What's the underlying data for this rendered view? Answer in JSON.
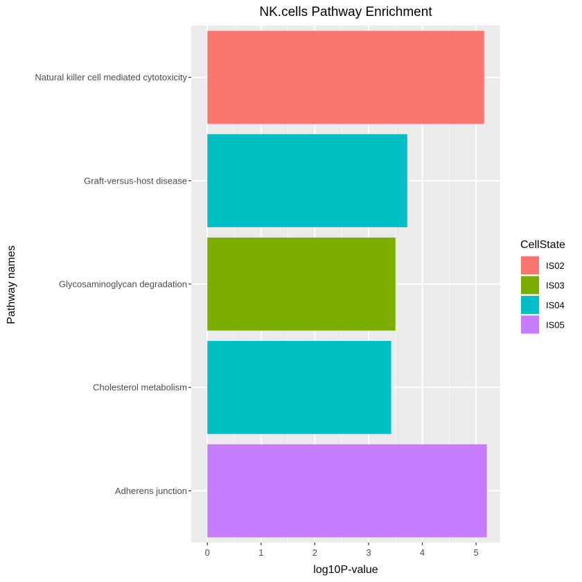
{
  "chart_data": {
    "type": "bar",
    "orientation": "horizontal",
    "title": "NK.cells Pathway Enrichment",
    "xlabel": "log10P-value",
    "ylabel": "Pathway names",
    "xlim": [
      -0.3,
      5.45
    ],
    "x_ticks": [
      0,
      1,
      2,
      3,
      4,
      5
    ],
    "categories": [
      "Natural killer cell mediated cytotoxicity",
      "Graft-versus-host disease",
      "Glycosaminoglycan degradation",
      "Cholesterol metabolism",
      "Adherens junction"
    ],
    "values": [
      5.15,
      3.72,
      3.5,
      3.42,
      5.2
    ],
    "fill_group": [
      "IS02",
      "IS04",
      "IS03",
      "IS04",
      "IS05"
    ],
    "grid": true,
    "panel_background": "#ebebeb",
    "legend": {
      "title": "CellState",
      "position": "right",
      "entries": [
        {
          "label": "IS02",
          "color": "#f8766d"
        },
        {
          "label": "IS03",
          "color": "#7cae00"
        },
        {
          "label": "IS04",
          "color": "#00bfc4"
        },
        {
          "label": "IS05",
          "color": "#c77cff"
        }
      ]
    }
  }
}
